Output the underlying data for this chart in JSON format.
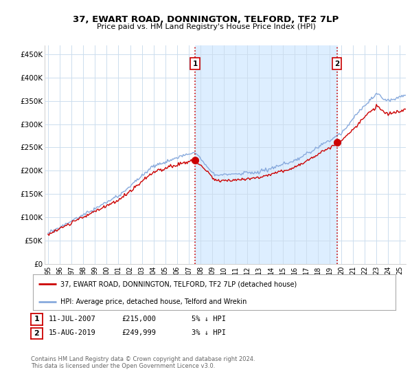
{
  "title": "37, EWART ROAD, DONNINGTON, TELFORD, TF2 7LP",
  "subtitle": "Price paid vs. HM Land Registry's House Price Index (HPI)",
  "ylabel_ticks": [
    "£0",
    "£50K",
    "£100K",
    "£150K",
    "£200K",
    "£250K",
    "£300K",
    "£350K",
    "£400K",
    "£450K"
  ],
  "ytick_values": [
    0,
    50000,
    100000,
    150000,
    200000,
    250000,
    300000,
    350000,
    400000,
    450000
  ],
  "ylim": [
    0,
    470000
  ],
  "xlim_start": 1994.7,
  "xlim_end": 2025.5,
  "red_line_color": "#cc0000",
  "blue_line_color": "#88aadd",
  "shade_color": "#ddeeff",
  "marker1_date": 2007.53,
  "marker1_value": 215000,
  "marker2_date": 2019.62,
  "marker2_value": 249999,
  "vline_color": "#cc0000",
  "legend_label_red": "37, EWART ROAD, DONNINGTON, TELFORD, TF2 7LP (detached house)",
  "legend_label_blue": "HPI: Average price, detached house, Telford and Wrekin",
  "annotation1_label": "1",
  "annotation2_label": "2",
  "table_row1": [
    "1",
    "11-JUL-2007",
    "£215,000",
    "5% ↓ HPI"
  ],
  "table_row2": [
    "2",
    "15-AUG-2019",
    "£249,999",
    "3% ↓ HPI"
  ],
  "footnote": "Contains HM Land Registry data © Crown copyright and database right 2024.\nThis data is licensed under the Open Government Licence v3.0.",
  "background_color": "#ffffff",
  "plot_background": "#ffffff",
  "grid_color": "#ccddee"
}
